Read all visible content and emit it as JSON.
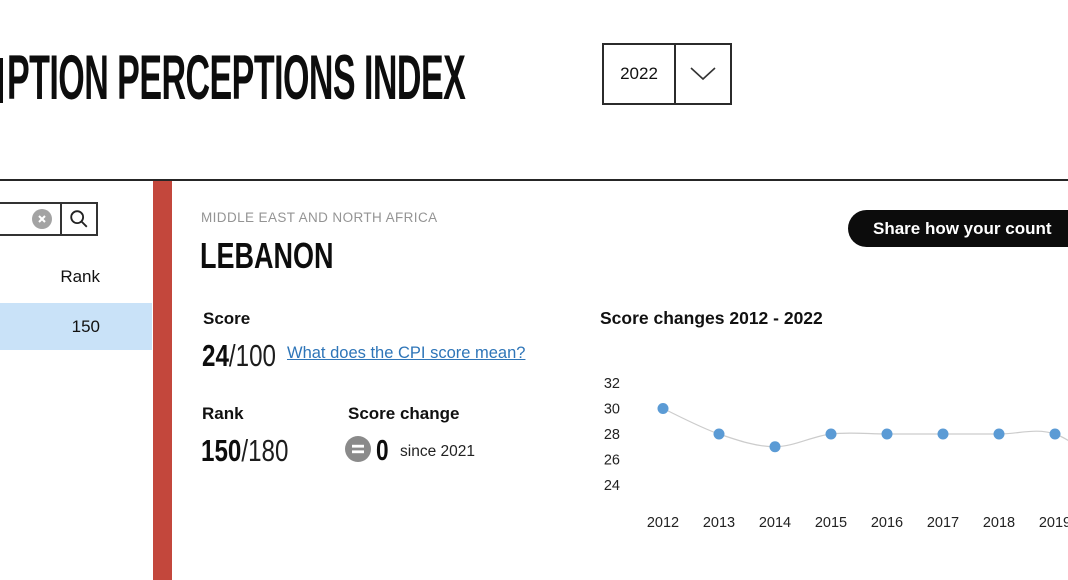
{
  "header": {
    "title": "PTION PERCEPTIONS INDEX",
    "year_selector": {
      "selected_year": "2022",
      "chevron_icon": "chevron-down"
    }
  },
  "sidebar": {
    "search": {
      "value": "",
      "clear_icon": "circle-x",
      "search_icon": "magnifier"
    },
    "column_header": "Rank",
    "highlighted_row": {
      "rank": "150"
    }
  },
  "main": {
    "region_label": "MIDDLE EAST AND NORTH AFRICA",
    "country_name": "LEBANON",
    "share_button_label": "Share how your count",
    "score_section": {
      "label": "Score",
      "value": "24",
      "max": "/100",
      "link_text": "What does the CPI score mean?"
    },
    "rank_section": {
      "label": "Rank",
      "value": "150",
      "max": "/180"
    },
    "score_change_section": {
      "label": "Score change",
      "equals_icon": "equals-circle",
      "value": "0",
      "period": "since 2021"
    }
  },
  "chart_data": {
    "type": "line",
    "title": "Score changes 2012 - 2022",
    "x": [
      2012,
      2013,
      2014,
      2015,
      2016,
      2017,
      2018,
      2019
    ],
    "values": [
      30,
      28,
      27,
      28,
      28,
      28,
      28,
      28
    ],
    "y_ticks": [
      32,
      30,
      28,
      26,
      24
    ],
    "ylim": [
      23,
      33
    ],
    "grid": false,
    "legend": false,
    "truncated_right": true,
    "point_color": "#5b9bd5",
    "line_color": "#cccccc"
  },
  "colors": {
    "accent_red_bar": "#c3473c",
    "row_highlight_blue": "#c9e2f8",
    "link_blue": "#2e75b8",
    "badge_gray": "#8a8a8a",
    "share_button_black": "#0c0c0c",
    "region_text_gray": "#949494"
  }
}
